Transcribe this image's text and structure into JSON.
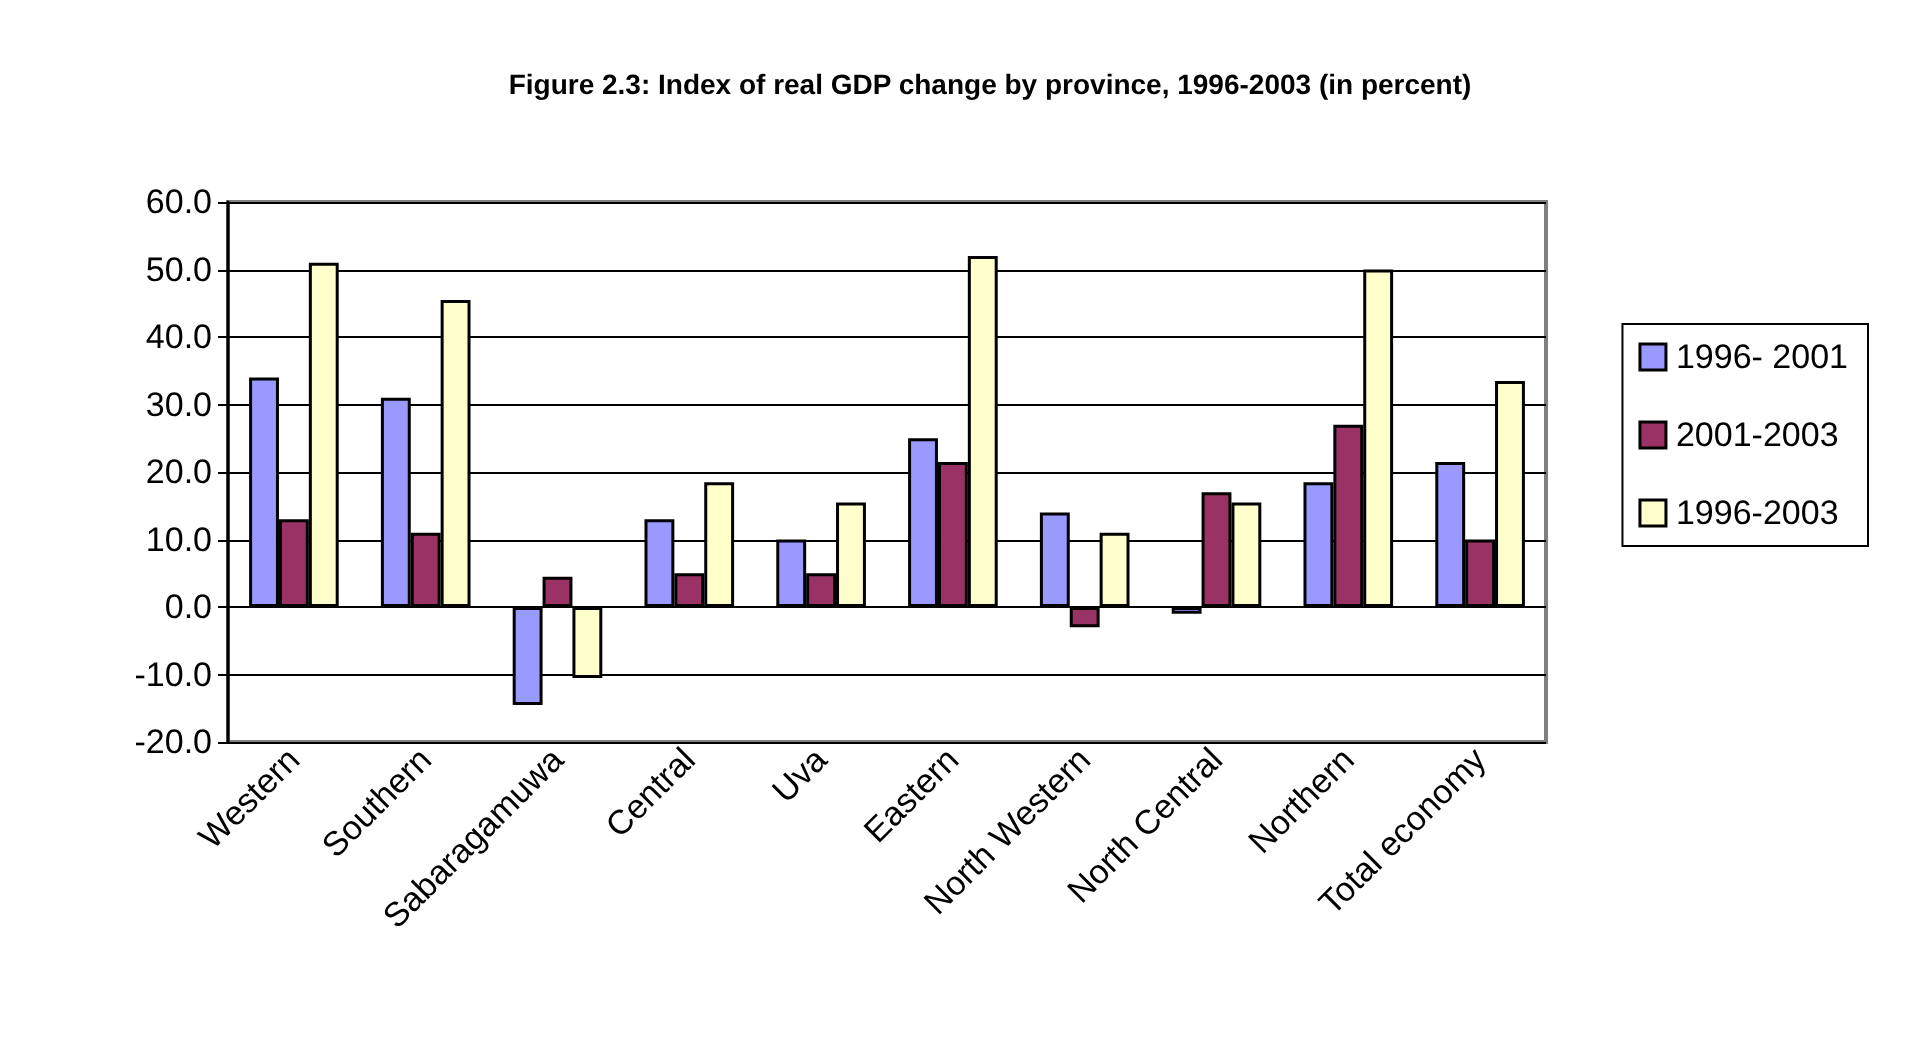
{
  "chart_data": {
    "type": "bar",
    "title": "Figure 2.3: Index of real GDP change by province, 1996-2003 (in percent)",
    "categories": [
      "Western",
      "Southern",
      "Sabaragamuwa",
      "Central",
      "Uva",
      "Eastern",
      "North Western",
      "North Central",
      "Northern",
      "Total economy"
    ],
    "series": [
      {
        "name": "1996- 2001",
        "color": "#9999ff",
        "values": [
          34,
          31,
          -14.5,
          13,
          10,
          25,
          14,
          -1,
          18.5,
          21.5
        ]
      },
      {
        "name": "2001-2003",
        "color": "#993366",
        "values": [
          13,
          11,
          4.5,
          5,
          5,
          21.5,
          -3,
          17,
          27,
          10
        ]
      },
      {
        "name": "1996-2003",
        "color": "#ffffcc",
        "values": [
          51,
          45.5,
          -10.5,
          18.5,
          15.5,
          52,
          11,
          15.5,
          50,
          33.5
        ]
      }
    ],
    "ylim": [
      -20,
      60
    ],
    "yticks": [
      {
        "value": -20,
        "label": "-20.0"
      },
      {
        "value": -10,
        "label": "-10.0"
      },
      {
        "value": 0,
        "label": "0.0"
      },
      {
        "value": 10,
        "label": "10.0"
      },
      {
        "value": 20,
        "label": "20.0"
      },
      {
        "value": 30,
        "label": "30.0"
      },
      {
        "value": 40,
        "label": "40.0"
      },
      {
        "value": 50,
        "label": "50.0"
      },
      {
        "value": 60,
        "label": "60.0"
      }
    ],
    "grid": "y",
    "legend": "right"
  }
}
